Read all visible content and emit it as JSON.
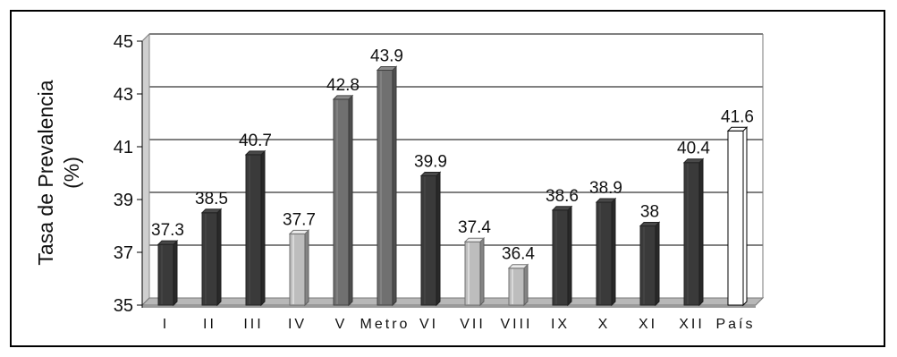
{
  "chart_data": {
    "type": "bar",
    "categories": [
      "I",
      "II",
      "III",
      "IV",
      "V",
      "Metro",
      "VI",
      "VII",
      "VIII",
      "IX",
      "X",
      "XI",
      "XII",
      "País"
    ],
    "values": [
      37.3,
      38.5,
      40.7,
      37.7,
      42.8,
      43.9,
      39.9,
      37.4,
      36.4,
      38.6,
      38.9,
      38,
      40.4,
      41.6
    ],
    "value_labels": [
      "37.3",
      "38.5",
      "40.7",
      "37.7",
      "42.8",
      "43.9",
      "39.9",
      "37.4",
      "36.4",
      "38.6",
      "38.9",
      "38",
      "40.4",
      "41.6"
    ],
    "ylabel_line1": "Tasa de Prevalencia",
    "ylabel_line2": "(%)",
    "ylim": [
      35,
      45
    ],
    "yticks": [
      35,
      37,
      39,
      41,
      43,
      45
    ],
    "grid": true,
    "style": "3d-cylinder",
    "bar_colors": [
      "#3a3a3a",
      "#3a3a3a",
      "#3a3a3a",
      "#bdbdbd",
      "#707070",
      "#707070",
      "#3a3a3a",
      "#bdbdbd",
      "#bdbdbd",
      "#3a3a3a",
      "#3a3a3a",
      "#3a3a3a",
      "#3a3a3a",
      "#ffffff"
    ]
  }
}
